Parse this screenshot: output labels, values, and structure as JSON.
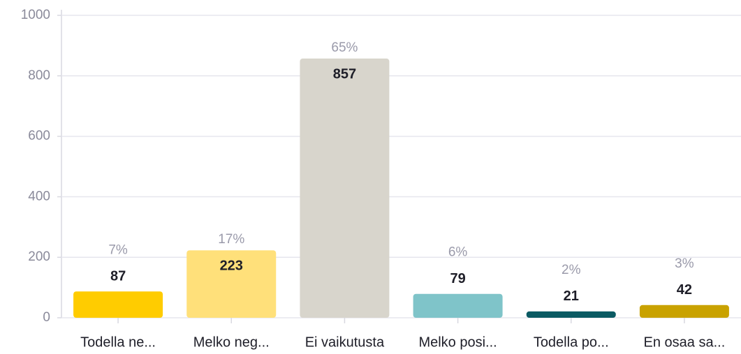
{
  "chart_data": {
    "type": "bar",
    "categories": [
      "Todella ne...",
      "Melko neg...",
      "Ei vaikutusta",
      "Melko posi...",
      "Todella po...",
      "En osaa sa..."
    ],
    "values": [
      87,
      223,
      857,
      79,
      21,
      42
    ],
    "percentages": [
      7,
      17,
      65,
      6,
      2,
      3
    ],
    "percentage_labels": [
      "7%",
      "17%",
      "65%",
      "6%",
      "2%",
      "3%"
    ],
    "colors": [
      "#ffcc00",
      "#ffe07a",
      "#d8d5cc",
      "#7fc4c9",
      "#0b5a63",
      "#c9a200"
    ],
    "ylim": [
      0,
      1000
    ],
    "yticks": [
      0,
      200,
      400,
      600,
      800,
      1000
    ],
    "grid": true
  }
}
